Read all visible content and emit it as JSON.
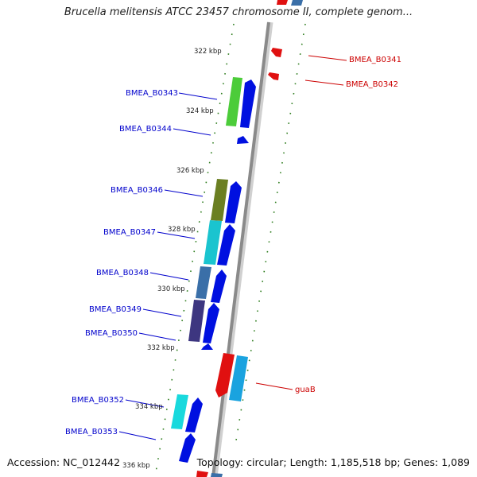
{
  "title": "Brucella melitensis ATCC 23457 chromosome II, complete genom...",
  "footer": {
    "accession": "Accession: NC_012442",
    "topology": "Topology: circular; Length: 1,185,518 bp; Genes: 1,089"
  },
  "colors": {
    "backbone": "#8a8a8a",
    "forward_label": "#0000cc",
    "reverse_label": "#cc0000",
    "tick": "#2e7d1e"
  },
  "kbp_ticks": [
    "322 kbp",
    "324 kbp",
    "326 kbp",
    "328 kbp",
    "330 kbp",
    "332 kbp",
    "334 kbp",
    "336 kbp"
  ],
  "forward_genes": [
    {
      "label": "BMEA_B0343",
      "color": "#4ccc3a"
    },
    {
      "label": "BMEA_B0344",
      "color": ""
    },
    {
      "label": "BMEA_B0346",
      "color": "#6b7f22"
    },
    {
      "label": "BMEA_B0347",
      "color": "#1ac4cf"
    },
    {
      "label": "BMEA_B0348",
      "color": "#3a6fa8"
    },
    {
      "label": "BMEA_B0349",
      "color": "#3d3680"
    },
    {
      "label": "BMEA_B0350",
      "color": ""
    },
    {
      "label": "BMEA_B0352",
      "color": "#19d9dd"
    },
    {
      "label": "BMEA_B0353",
      "color": ""
    }
  ],
  "reverse_genes": [
    {
      "label": "BMEA_B0341"
    },
    {
      "label": "BMEA_B0342"
    },
    {
      "label": "guaB"
    }
  ]
}
